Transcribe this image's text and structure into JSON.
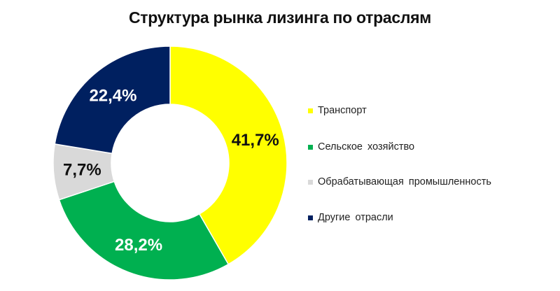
{
  "chart_data": {
    "type": "pie",
    "title": "Структура рынка лизинга по отраслям",
    "categories": [
      "Транспорт",
      "Сельское хозяйство",
      "Обрабатывающая промышленность",
      "Другие отрасли"
    ],
    "values": [
      41.7,
      28.2,
      7.7,
      22.4
    ],
    "data_labels": [
      "41,7%",
      "28,2%",
      "7,7%",
      "22,4%"
    ],
    "colors": [
      "#ffff00",
      "#00b050",
      "#d9d9d9",
      "#002060"
    ],
    "label_colors": [
      "#111111",
      "#ffffff",
      "#111111",
      "#ffffff"
    ],
    "donut": true,
    "start_angle_deg": 0,
    "direction": "clockwise",
    "legend_position": "right"
  }
}
